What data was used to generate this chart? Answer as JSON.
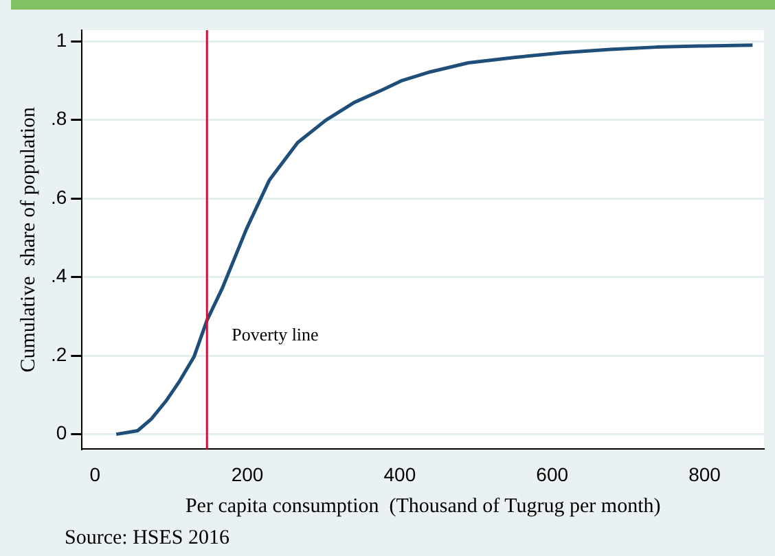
{
  "chart_data": {
    "type": "line",
    "xlabel": "Per capita consumption  (Thousand of Tugrug per month)",
    "ylabel": "Cumulative  share of population",
    "annotations": [
      "Source: HSES 2016"
    ],
    "series": [
      {
        "color": "#1f4e79",
        "x": [
          28,
          56,
          74,
          93,
          111,
          130,
          147,
          167,
          199,
          229,
          266,
          303,
          340,
          378,
          403,
          440,
          490,
          552,
          614,
          676,
          737,
          799,
          863
        ],
        "values": [
          0,
          0.009,
          0.039,
          0.084,
          0.135,
          0.197,
          0.29,
          0.371,
          0.523,
          0.647,
          0.742,
          0.799,
          0.844,
          0.877,
          0.9,
          0.922,
          0.945,
          0.959,
          0.971,
          0.979,
          0.985,
          0.988,
          0.99
        ]
      }
    ],
    "ref_lines": [
      {
        "axis": "x",
        "value": 147,
        "label": "Poverty line",
        "color": "#d0103a"
      }
    ],
    "xlim": [
      -17,
      878
    ],
    "xticks": [
      0,
      200,
      400,
      600,
      800
    ],
    "ylim": [
      -0.038,
      1.028
    ],
    "yticks": [
      0,
      {
        "value": 0.2,
        "label": ".2"
      },
      {
        "value": 0.4,
        "label": ".4"
      },
      {
        "value": 0.6,
        "label": ".6"
      },
      {
        "value": 0.8,
        "label": ".8"
      },
      1
    ],
    "grid": "y",
    "legend": false,
    "marker": "none",
    "line_style": "solid"
  }
}
